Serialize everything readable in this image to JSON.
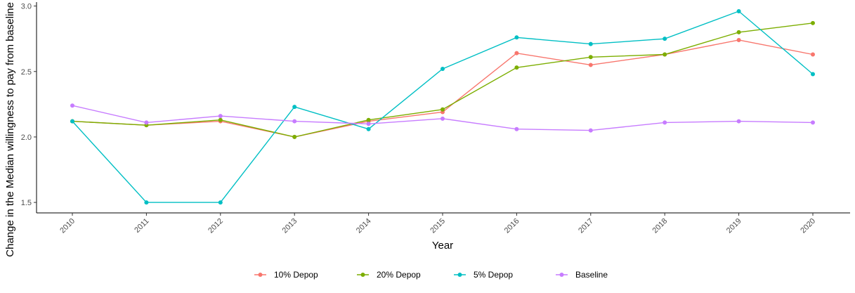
{
  "chart_data": {
    "type": "line",
    "xlabel": "Year",
    "ylabel": "Change in the Median willingness to pay from baseline",
    "x": [
      "2010",
      "2011",
      "2012",
      "2013",
      "2014",
      "2015",
      "2016",
      "2017",
      "2018",
      "2019",
      "2020"
    ],
    "ylim": [
      1.42,
      3.03
    ],
    "yticks": [
      "1.5",
      "2.0",
      "2.5",
      "3.0"
    ],
    "grid": false,
    "legend": "bottom",
    "series": [
      {
        "name": "10% Depop",
        "color": "#F8766D",
        "values": [
          2.12,
          2.09,
          2.12,
          2.0,
          2.12,
          2.19,
          2.64,
          2.55,
          2.63,
          2.74,
          2.63
        ]
      },
      {
        "name": "20% Depop",
        "color": "#7CAE00",
        "values": [
          2.12,
          2.09,
          2.13,
          2.0,
          2.13,
          2.21,
          2.53,
          2.61,
          2.63,
          2.8,
          2.87
        ]
      },
      {
        "name": "5% Depop",
        "color": "#00BFC4",
        "values": [
          2.12,
          1.5,
          1.5,
          2.23,
          2.06,
          2.52,
          2.76,
          2.71,
          2.75,
          2.96,
          2.48
        ]
      },
      {
        "name": "Baseline",
        "color": "#C77CFF",
        "values": [
          2.24,
          2.11,
          2.16,
          2.12,
          2.1,
          2.14,
          2.06,
          2.05,
          2.11,
          2.12,
          2.11
        ]
      }
    ]
  }
}
